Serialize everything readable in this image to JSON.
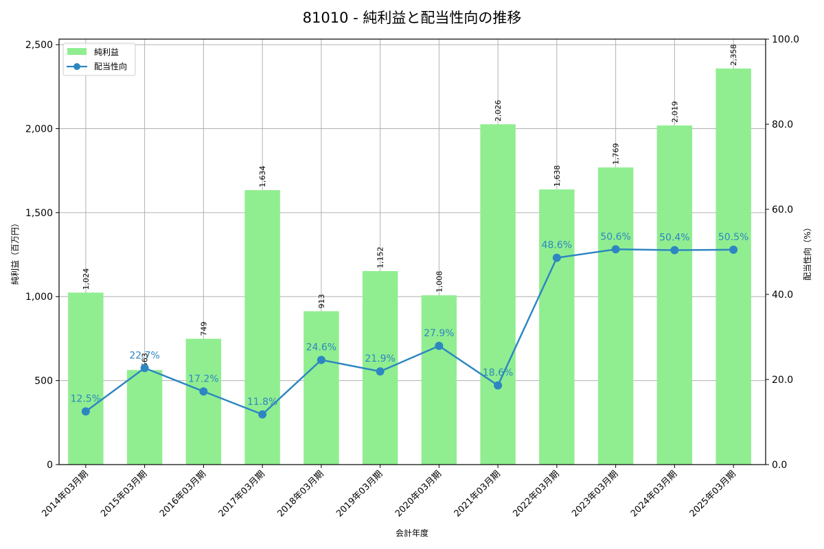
{
  "title": "81010 - 純利益と配当性向の推移",
  "chart_data": {
    "type": "bar+line",
    "title": "81010 - 純利益と配当性向の推移",
    "xlabel": "会計年度",
    "ylabel_left": "純利益（百万円）",
    "ylabel_right": "配当性向（%）",
    "categories": [
      "2014年03月期",
      "2015年03月期",
      "2016年03月期",
      "2017年03月期",
      "2018年03月期",
      "2019年03月期",
      "2020年03月期",
      "2021年03月期",
      "2022年03月期",
      "2023年03月期",
      "2024年03月期",
      "2025年03月期"
    ],
    "series": [
      {
        "name": "純利益",
        "type": "bar",
        "axis": "left",
        "color": "#90ee90",
        "values": [
          1024,
          563,
          749,
          1634,
          913,
          1152,
          1008,
          2026,
          1638,
          1769,
          2019,
          2358
        ],
        "labels": [
          "1,024",
          "563",
          "749",
          "1,634",
          "913",
          "1,152",
          "1,008",
          "2,026",
          "1,638",
          "1,769",
          "2,019",
          "2,358"
        ]
      },
      {
        "name": "配当性向",
        "type": "line",
        "axis": "right",
        "color": "#2e86c1",
        "values": [
          12.5,
          22.7,
          17.2,
          11.8,
          24.6,
          21.9,
          27.9,
          18.6,
          48.6,
          50.6,
          50.4,
          50.5
        ],
        "labels": [
          "12.5%",
          "22.7%",
          "17.2%",
          "11.8%",
          "24.6%",
          "21.9%",
          "27.9%",
          "18.6%",
          "48.6%",
          "50.6%",
          "50.4%",
          "50.5%"
        ]
      }
    ],
    "ylim_left": [
      0,
      2533
    ],
    "ylim_right": [
      0,
      100
    ],
    "yticks_left": [
      0,
      500,
      1000,
      1500,
      2000,
      2500
    ],
    "yticks_left_labels": [
      "0",
      "500",
      "1,000",
      "1,500",
      "2,000",
      "2,500"
    ],
    "yticks_right": [
      0,
      20,
      40,
      60,
      80,
      100
    ],
    "yticks_right_labels": [
      "0.0",
      "20.0",
      "40.0",
      "60.0",
      "80.0",
      "100.0"
    ],
    "grid": true,
    "legend_position": "upper left",
    "legend": [
      "純利益",
      "配当性向"
    ]
  }
}
